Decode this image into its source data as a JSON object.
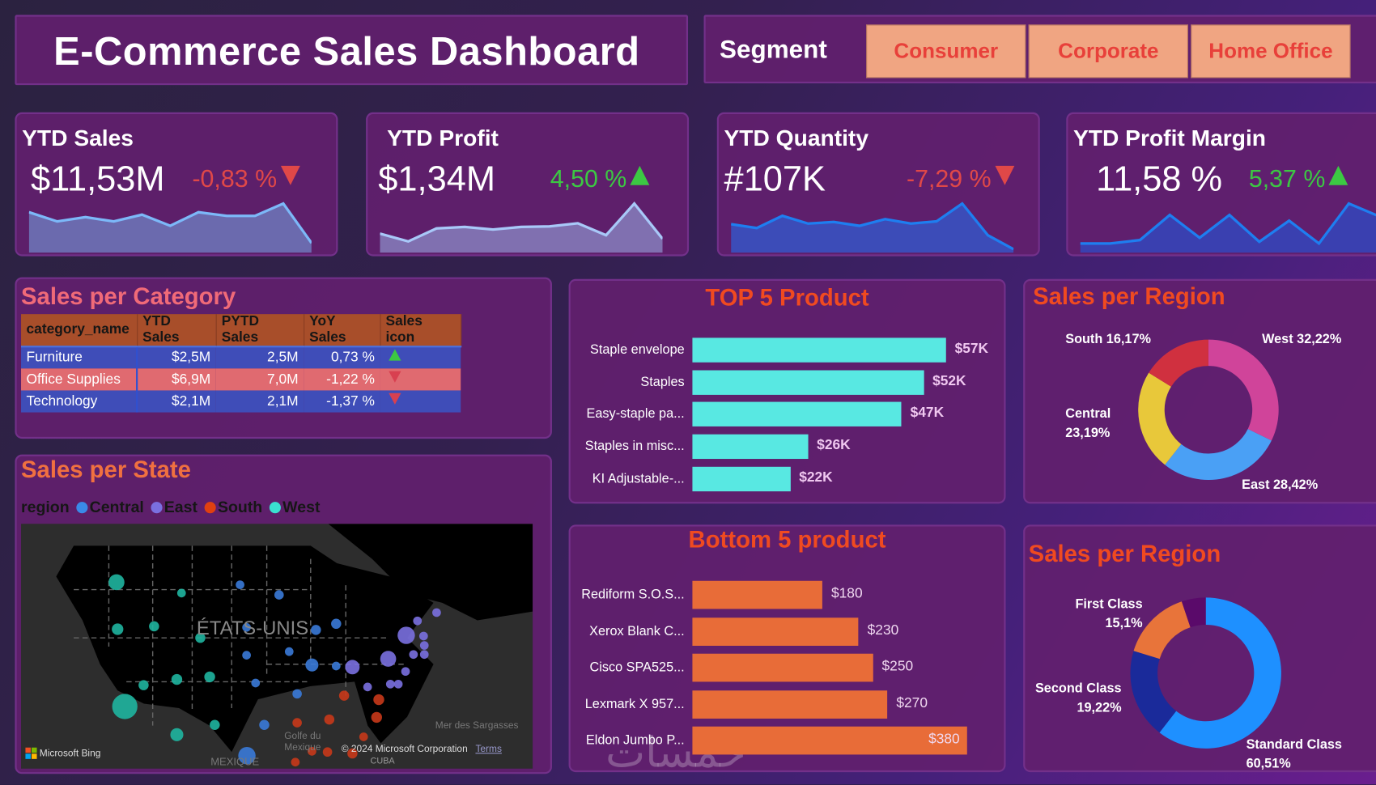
{
  "header": {
    "title": "E-Commerce Sales Dashboard"
  },
  "segment": {
    "label": "Segment",
    "options": [
      "Consumer",
      "Corporate",
      "Home Office"
    ]
  },
  "kpis": [
    {
      "title": "YTD Sales",
      "value": "$11,53M",
      "delta": "-0,83 %",
      "trend": "down",
      "spark": [
        6,
        4.5,
        5.2,
        4.5,
        5.6,
        3.8,
        6,
        5.4,
        5.4,
        7.4,
        1
      ],
      "stroke": "#7cb8f8",
      "fill": "#6b6aae"
    },
    {
      "title": "YTD Profit",
      "value": "$1,34M",
      "delta": "4,50 %",
      "trend": "up",
      "spark": [
        3,
        1.5,
        4,
        4.3,
        3.8,
        4.3,
        4.4,
        5,
        2.7,
        8.8,
        2
      ],
      "stroke": "#a8c8f8",
      "fill": "#8070b0"
    },
    {
      "title": "YTD Quantity",
      "value": "#107K",
      "delta": "-7,29 %",
      "trend": "down",
      "spark": [
        4.5,
        3.8,
        6,
        4.6,
        4.9,
        4.2,
        5.4,
        4.6,
        5,
        8.2,
        2.5,
        0
      ],
      "stroke": "#1e7ef0",
      "fill": "#3c4cb8"
    },
    {
      "title": "YTD Profit Margin",
      "value": "11,58 %",
      "delta": "5,37 %",
      "trend": "up",
      "spark": [
        1,
        1,
        1.6,
        6,
        2,
        6,
        1.3,
        5,
        1,
        8,
        5.8
      ],
      "stroke": "#1e7ef0",
      "fill": "#3a40b0"
    }
  ],
  "category": {
    "title": "Sales per Category",
    "columns": [
      "category_name",
      "YTD Sales",
      "PYTD Sales",
      "YoY Sales",
      "Sales icon"
    ],
    "rows": [
      [
        "Furniture",
        "$2,5M",
        "2,5M",
        "0,73 %",
        "up"
      ],
      [
        "Office Supplies",
        "$6,9M",
        "7,0M",
        "-1,22 %",
        "down"
      ],
      [
        "Technology",
        "$2,1M",
        "2,1M",
        "-1,37 %",
        "down"
      ]
    ]
  },
  "state": {
    "title": "Sales per State",
    "legend_title": "region",
    "legend": [
      {
        "name": "Central",
        "color": "#3a8ae8"
      },
      {
        "name": "East",
        "color": "#7a70e0"
      },
      {
        "name": "South",
        "color": "#e04010"
      },
      {
        "name": "West",
        "color": "#3ae0d0"
      }
    ],
    "map_labels": {
      "country": "ÉTATS-UNIS",
      "gulf1": "Golfe du",
      "gulf2": "Mexique",
      "sea": "Mer des Sargasses",
      "mexico": "MEXIQUE",
      "cuba": "CUBA",
      "bing": "Microsoft Bing",
      "copyright": "© 2024 Microsoft Corporation",
      "terms": "Terms"
    }
  },
  "top5": {
    "title": "TOP 5 Product",
    "color": "#58e8e2",
    "categories": [
      "Staple envelope",
      "Staples",
      "Easy-staple pa...",
      "Staples in misc...",
      "KI Adjustable-..."
    ],
    "values": [
      57,
      52,
      47,
      26,
      22
    ],
    "labels": [
      "$57K",
      "$52K",
      "$47K",
      "$26K",
      "$22K"
    ]
  },
  "bottom5": {
    "title": "Bottom 5 product",
    "color": "#e86c38",
    "categories": [
      "Rediform S.O.S...",
      "Xerox Blank C...",
      "Cisco SPA525...",
      "Lexmark X 957...",
      "Eldon Jumbo P..."
    ],
    "values": [
      180,
      230,
      250,
      270,
      380
    ],
    "labels": [
      "$180",
      "$230",
      "$250",
      "$270",
      "$380"
    ]
  },
  "chart_data": [
    {
      "type": "pie",
      "title": "Sales per Region",
      "slices": [
        {
          "name": "West",
          "value": 32.22,
          "label": "West 32,22%",
          "color": "#d0449a"
        },
        {
          "name": "East",
          "value": 28.42,
          "label": "East 28,42%",
          "color": "#4aa0f5"
        },
        {
          "name": "Central",
          "value": 23.19,
          "label": "Central 23,19%",
          "color": "#e8c83a"
        },
        {
          "name": "South",
          "value": 16.17,
          "label": "South 16,17%",
          "color": "#d0303f"
        }
      ]
    },
    {
      "type": "pie",
      "title": "Sales per Region",
      "slices": [
        {
          "name": "Standard Class",
          "value": 60.51,
          "label": "60,51%",
          "color": "#1e90ff"
        },
        {
          "name": "Second Class",
          "value": 19.22,
          "label": "19,22%",
          "color": "#1a2a9a"
        },
        {
          "name": "First Class",
          "value": 15.1,
          "label": "15,1%",
          "color": "#e8743a"
        },
        {
          "name": "",
          "value": 5.17,
          "color": "#5a0a6a"
        }
      ]
    }
  ],
  "watermark": "خمسات"
}
